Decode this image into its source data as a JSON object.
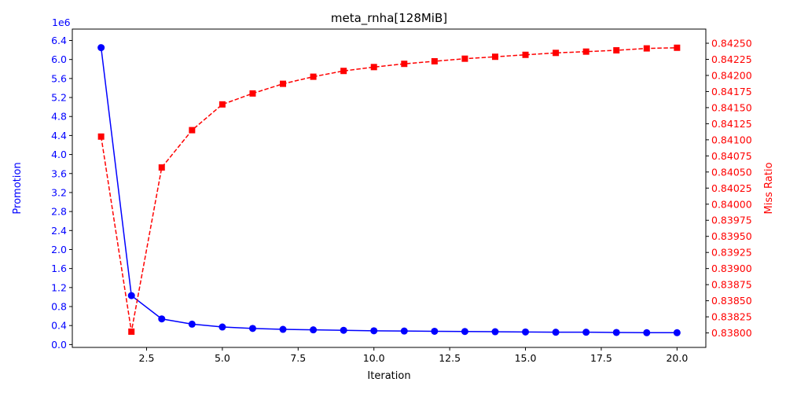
{
  "chart_data": {
    "type": "line",
    "title": "meta_rnha[128MiB]",
    "xlabel": "Iteration",
    "ylabel_left": "Promotion",
    "ylabel_right": "Miss Ratio",
    "left_offset_text": "1e6",
    "xlim": [
      0.05,
      20.95
    ],
    "ylim_left": [
      -0.06,
      6.64
    ],
    "ylim_right": [
      0.837775,
      0.84272
    ],
    "x_ticks": [
      2.5,
      5.0,
      7.5,
      10.0,
      12.5,
      15.0,
      17.5,
      20.0
    ],
    "x_tick_labels": [
      "2.5",
      "5.0",
      "7.5",
      "10.0",
      "12.5",
      "15.0",
      "17.5",
      "20.0"
    ],
    "y_left_ticks": [
      0.0,
      0.4,
      0.8,
      1.2,
      1.6,
      2.0,
      2.4,
      2.8,
      3.2,
      3.6,
      4.0,
      4.4,
      4.8,
      5.2,
      5.6,
      6.0,
      6.4
    ],
    "y_left_tick_labels": [
      "0.0",
      "0.4",
      "0.8",
      "1.2",
      "1.6",
      "2.0",
      "2.4",
      "2.8",
      "3.2",
      "3.6",
      "4.0",
      "4.4",
      "4.8",
      "5.2",
      "5.6",
      "6.0",
      "6.4"
    ],
    "y_right_ticks": [
      0.838,
      0.83825,
      0.8385,
      0.83875,
      0.839,
      0.83925,
      0.8395,
      0.83975,
      0.84,
      0.84025,
      0.8405,
      0.84075,
      0.841,
      0.84125,
      0.8415,
      0.84175,
      0.842,
      0.84225,
      0.8425
    ],
    "y_right_tick_labels": [
      "0.83800",
      "0.83825",
      "0.83850",
      "0.83875",
      "0.83900",
      "0.83925",
      "0.83950",
      "0.83975",
      "0.84000",
      "0.84025",
      "0.84050",
      "0.84075",
      "0.84100",
      "0.84125",
      "0.84150",
      "0.84175",
      "0.84200",
      "0.84225",
      "0.84250"
    ],
    "grid": false,
    "x": [
      1,
      2,
      3,
      4,
      5,
      6,
      7,
      8,
      9,
      10,
      11,
      12,
      13,
      14,
      15,
      16,
      17,
      18,
      19,
      20
    ],
    "series": [
      {
        "name": "Promotion",
        "axis": "left",
        "color": "#0000ff",
        "linestyle": "solid",
        "marker": "circle",
        "values": [
          6.25,
          1.03,
          0.54,
          0.43,
          0.37,
          0.34,
          0.32,
          0.31,
          0.3,
          0.29,
          0.285,
          0.28,
          0.275,
          0.27,
          0.265,
          0.26,
          0.26,
          0.255,
          0.25,
          0.25
        ]
      },
      {
        "name": "Miss Ratio",
        "axis": "right",
        "color": "#ff0000",
        "linestyle": "dashed",
        "marker": "square",
        "values": [
          0.84105,
          0.83802,
          0.84057,
          0.84115,
          0.84155,
          0.84172,
          0.84187,
          0.84198,
          0.84207,
          0.84213,
          0.84218,
          0.84222,
          0.84226,
          0.84229,
          0.84232,
          0.84235,
          0.84237,
          0.84239,
          0.84242,
          0.84243
        ]
      }
    ]
  }
}
